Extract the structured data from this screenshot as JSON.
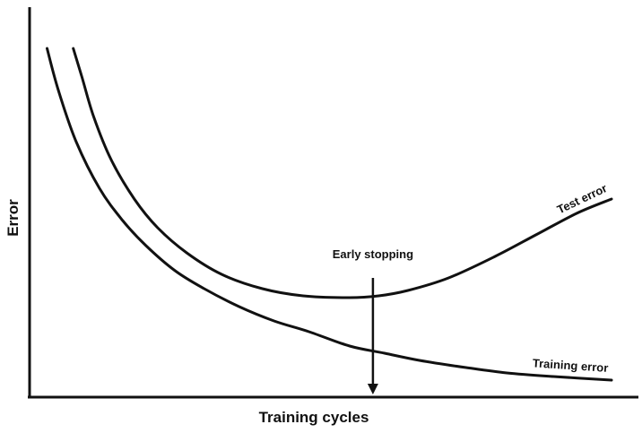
{
  "chart_data": {
    "type": "line",
    "title": "",
    "xlabel": "Training cycles",
    "ylabel": "Error",
    "grid": false,
    "legend": "none",
    "xlim": [
      0,
      100
    ],
    "ylim": [
      0,
      100
    ],
    "series": [
      {
        "name": "Training error",
        "x": [
          3,
          5,
          8,
          12,
          16,
          20,
          25,
          30,
          36,
          42,
          48,
          55,
          61,
          67,
          75,
          82,
          90,
          100
        ],
        "y": [
          94,
          82,
          68,
          55,
          46,
          39,
          32,
          27,
          22,
          18,
          15,
          11,
          9,
          7,
          5,
          3.5,
          2.5,
          1.5
        ]
      },
      {
        "name": "Test error",
        "x": [
          7.5,
          9,
          11,
          14,
          18,
          22,
          27,
          33,
          40,
          47,
          55,
          60,
          65,
          72,
          80,
          87,
          94,
          100
        ],
        "y": [
          94,
          86,
          75,
          63,
          52,
          44,
          37,
          31,
          27,
          25,
          24.5,
          25,
          26.5,
          30,
          36,
          42,
          48,
          52
        ]
      }
    ],
    "annotations": [
      {
        "text": "Early stopping",
        "x": 59,
        "y_from": 30,
        "y_to": 0
      }
    ]
  }
}
